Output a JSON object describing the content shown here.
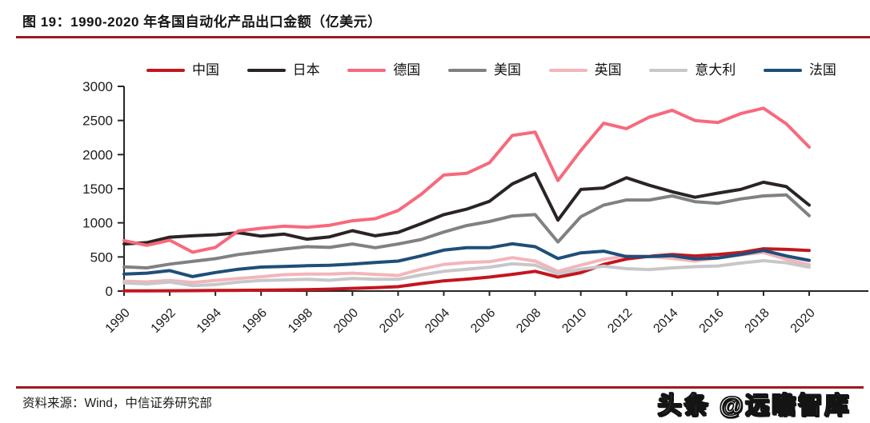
{
  "title": "图 19：1990-2020 年各国自动化产品出口金额（亿美元）",
  "footer": {
    "source": "资料来源：Wind，中信证券研究部",
    "watermark": "头条 @远瞻智库"
  },
  "accent_rule_color": "#9b1c20",
  "chart_data": {
    "type": "line",
    "title": "1990-2020 年各国自动化产品出口金额（亿美元）",
    "xlabel": "",
    "ylabel": "",
    "ylim": [
      0,
      3000
    ],
    "y_ticks": [
      0,
      500,
      1000,
      1500,
      2000,
      2500,
      3000
    ],
    "x_tick_labels": [
      "1990",
      "1992",
      "1994",
      "1996",
      "1998",
      "2000",
      "2002",
      "2004",
      "2006",
      "2008",
      "2010",
      "2012",
      "2014",
      "2016",
      "2018",
      "2020"
    ],
    "grid": false,
    "legend_position": "top",
    "x": [
      1990,
      1991,
      1992,
      1993,
      1994,
      1995,
      1996,
      1997,
      1998,
      1999,
      2000,
      2001,
      2002,
      2003,
      2004,
      2005,
      2006,
      2007,
      2008,
      2009,
      2010,
      2011,
      2012,
      2013,
      2014,
      2015,
      2016,
      2017,
      2018,
      2019,
      2020
    ],
    "series": [
      {
        "name": "中国",
        "color": "#c3161f",
        "values": [
          2,
          3,
          5,
          6,
          8,
          10,
          13,
          16,
          21,
          28,
          40,
          50,
          65,
          110,
          150,
          175,
          205,
          245,
          290,
          205,
          270,
          390,
          470,
          510,
          535,
          515,
          535,
          565,
          620,
          610,
          595
        ]
      },
      {
        "name": "日本",
        "color": "#2b2424",
        "values": [
          690,
          710,
          790,
          810,
          825,
          855,
          805,
          835,
          760,
          795,
          885,
          810,
          860,
          985,
          1120,
          1200,
          1315,
          1570,
          1720,
          1040,
          1490,
          1510,
          1660,
          1550,
          1455,
          1375,
          1435,
          1490,
          1595,
          1530,
          1260
        ]
      },
      {
        "name": "德国",
        "color": "#f7697c",
        "values": [
          740,
          670,
          745,
          570,
          640,
          880,
          920,
          950,
          935,
          965,
          1030,
          1060,
          1180,
          1415,
          1700,
          1725,
          1880,
          2280,
          2330,
          1620,
          2060,
          2460,
          2380,
          2550,
          2650,
          2500,
          2470,
          2600,
          2680,
          2450,
          2110
        ]
      },
      {
        "name": "美国",
        "color": "#7f8183",
        "values": [
          355,
          340,
          395,
          435,
          475,
          535,
          575,
          615,
          650,
          640,
          690,
          635,
          690,
          755,
          865,
          960,
          1020,
          1100,
          1120,
          720,
          1090,
          1260,
          1335,
          1335,
          1395,
          1310,
          1285,
          1350,
          1395,
          1410,
          1105
        ]
      },
      {
        "name": "英国",
        "color": "#f3b5bb",
        "values": [
          145,
          135,
          155,
          125,
          155,
          185,
          210,
          240,
          250,
          248,
          262,
          245,
          228,
          320,
          390,
          418,
          430,
          490,
          440,
          290,
          380,
          465,
          515,
          510,
          478,
          440,
          485,
          530,
          565,
          465,
          385
        ]
      },
      {
        "name": "意大利",
        "color": "#c7c7c9",
        "values": [
          118,
          105,
          132,
          80,
          95,
          132,
          155,
          163,
          172,
          158,
          185,
          172,
          172,
          235,
          290,
          320,
          350,
          400,
          380,
          252,
          320,
          365,
          328,
          315,
          340,
          358,
          368,
          410,
          445,
          415,
          350
        ]
      },
      {
        "name": "法国",
        "color": "#1f4e79",
        "values": [
          250,
          262,
          300,
          212,
          272,
          320,
          352,
          360,
          372,
          378,
          395,
          420,
          440,
          515,
          600,
          635,
          635,
          692,
          650,
          477,
          560,
          585,
          505,
          505,
          518,
          470,
          485,
          535,
          595,
          515,
          450
        ]
      }
    ]
  }
}
